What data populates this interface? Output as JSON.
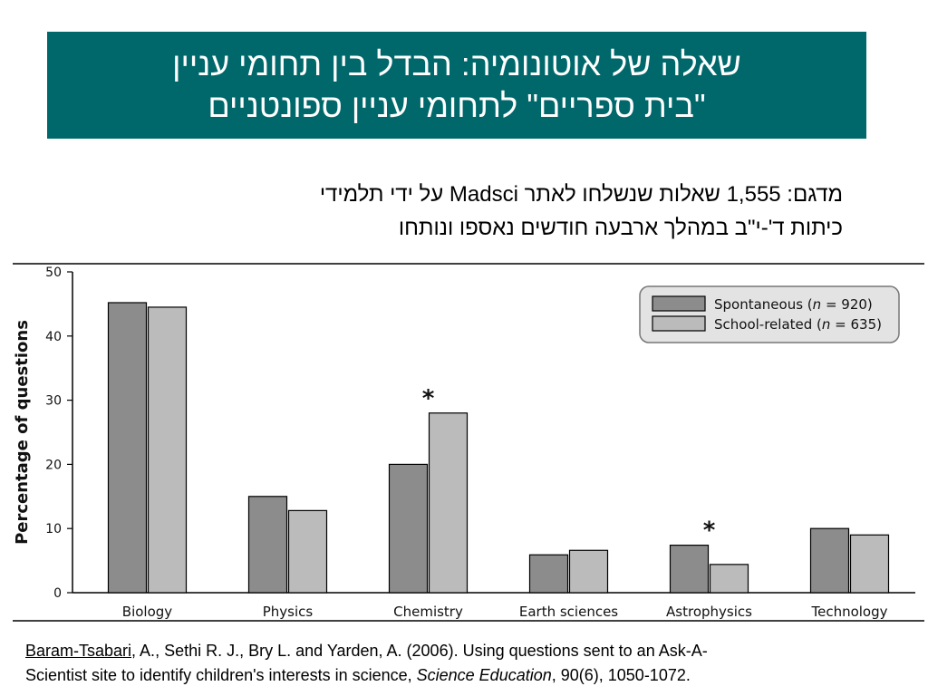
{
  "slide": {
    "title_line1": "שאלה של אוטונומיה: הבדל בין תחומי עניין",
    "title_line2": "\"בית ספריים\" לתחומי עניין ספונטניים",
    "subtitle_line1": "מדגם: 1,555 שאלות שנשלחו לאתר Madsci על ידי תלמידי",
    "subtitle_line2": "כיתות ד'-י\"ב במהלך ארבעה חודשים נאספו ונותחו"
  },
  "citation": {
    "author_underlined": "Baram-Tsabari",
    "rest_line1": ", A., Sethi R. J., Bry L. and Yarden, A. (2006). Using questions sent to an Ask-A-",
    "line2_start": "Scientist site to identify children's interests in science, ",
    "journal": "Science Education",
    "line2_end": ", 90(6), 1050-1072."
  },
  "chart_data": {
    "type": "bar",
    "categories": [
      "Biology",
      "Physics",
      "Chemistry",
      "Earth sciences",
      "Astrophysics",
      "Technology"
    ],
    "series": [
      {
        "name": "Spontaneous (n = 920)",
        "label_text": "Spontaneous (",
        "label_n": "n",
        "label_rest": " = 920)",
        "color": "#8c8c8c",
        "values": [
          45.2,
          15.0,
          20.0,
          5.9,
          7.4,
          10.0
        ]
      },
      {
        "name": "School-related (n = 635)",
        "label_text": "School-related (",
        "label_n": "n",
        "label_rest": " = 635)",
        "color": "#bbbbbb",
        "values": [
          44.5,
          12.8,
          28.0,
          6.6,
          4.4,
          9.0
        ]
      }
    ],
    "ylabel": "Percentage of questions",
    "xlabel": "",
    "ylim": [
      0,
      50
    ],
    "yticks": [
      0,
      10,
      20,
      30,
      40,
      50
    ],
    "annotations": [
      {
        "category": "Chemistry",
        "text": "*"
      },
      {
        "category": "Astrophysics",
        "text": "*"
      }
    ],
    "grid": false,
    "legend_position": "top-right"
  }
}
